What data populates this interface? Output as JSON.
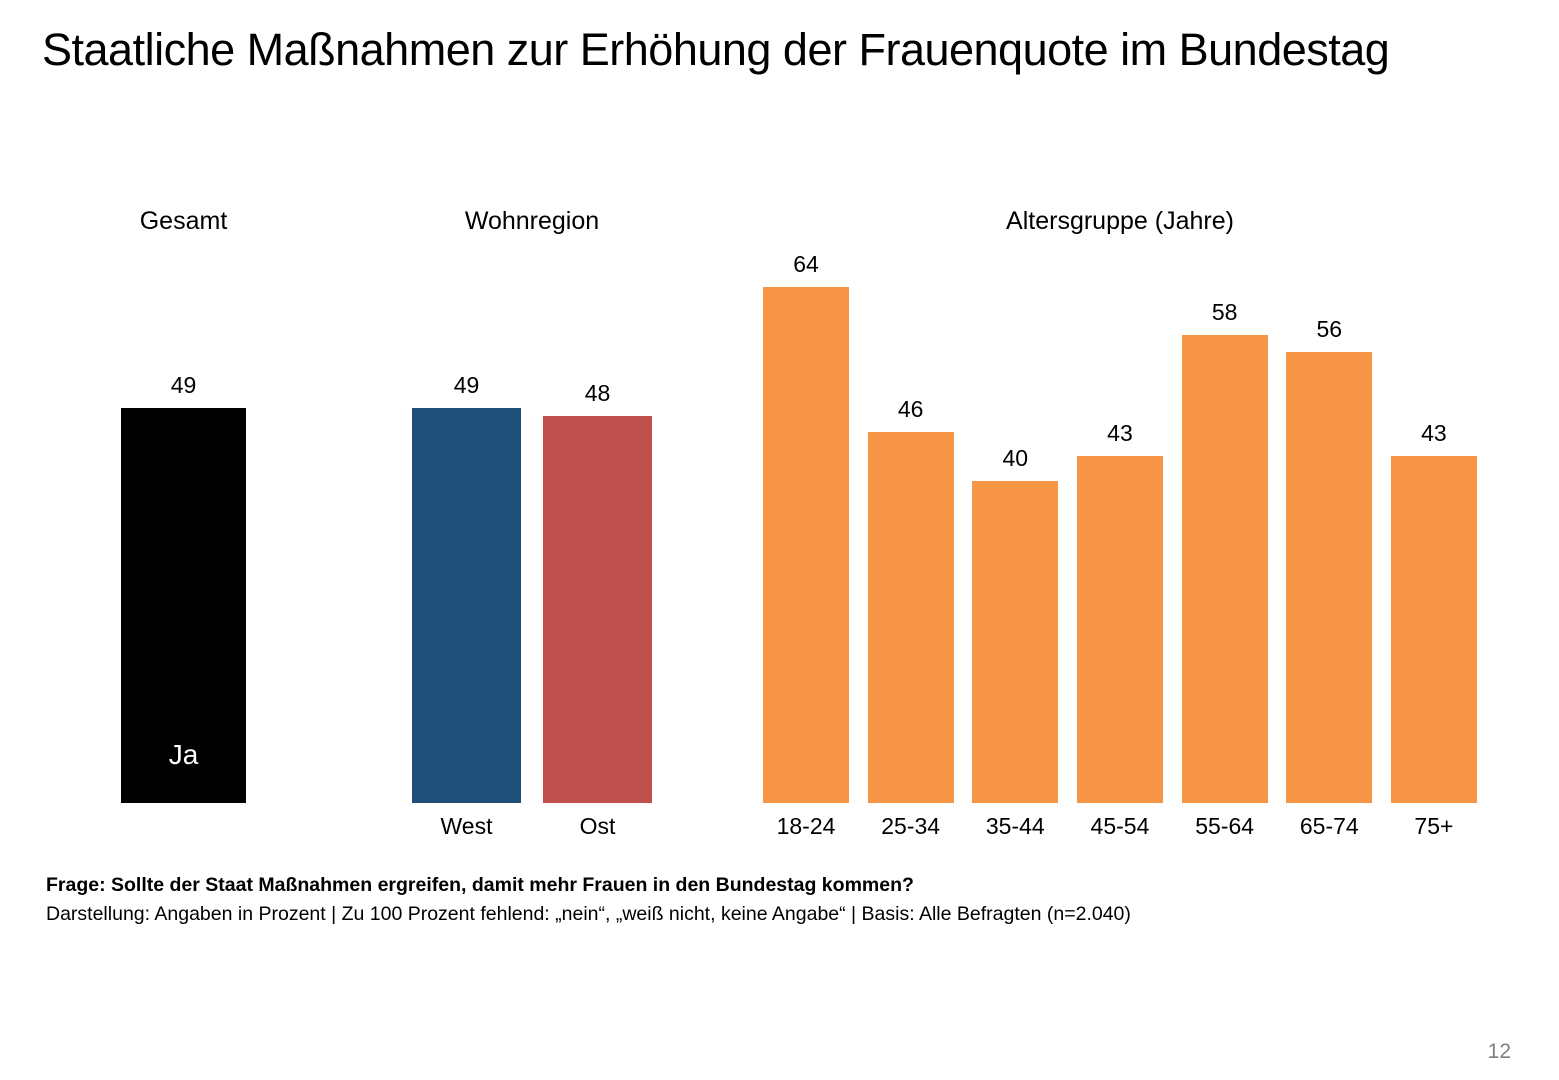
{
  "title": "Staatliche Maßnahmen zur Erhöhung der Frauenquote im Bundestag",
  "footer": {
    "question": "Frage: Sollte der Staat Maßnahmen ergreifen, damit mehr Frauen in den Bundestag kommen?",
    "note": "Darstellung: Angaben in Prozent | Zu 100 Prozent fehlend: „nein“, „weiß nicht, keine Angabe“ | Basis: Alle Befragten (n=2.040)"
  },
  "page_number": "12",
  "colors": {
    "gesamt": "#000000",
    "west": "#1F4E79",
    "ost": "#C0504D",
    "altersgruppe": "#F79646",
    "value_label": "#000000",
    "inner_label": "#FFFFFF",
    "page_number": "#7F7F7F"
  },
  "chart_data": {
    "type": "bar",
    "title": "Staatliche Maßnahmen zur Erhöhung der Frauenquote im Bundestag",
    "unit": "percent",
    "ylabel": "",
    "xlabel": "",
    "ylim": [
      0,
      100
    ],
    "grid": false,
    "legend": false,
    "answer_shown": "Ja",
    "groups": [
      {
        "label": "Gesamt",
        "color": "#000000",
        "bars": [
          {
            "category": "Ja",
            "value": 49,
            "label_position": "inside"
          }
        ]
      },
      {
        "label": "Wohnregion",
        "bars": [
          {
            "category": "West",
            "value": 49,
            "color": "#1F4E79"
          },
          {
            "category": "Ost",
            "value": 48,
            "color": "#C0504D"
          }
        ]
      },
      {
        "label": "Altersgruppe (Jahre)",
        "color": "#F79646",
        "bars": [
          {
            "category": "18-24",
            "value": 64
          },
          {
            "category": "25-34",
            "value": 46
          },
          {
            "category": "35-44",
            "value": 40
          },
          {
            "category": "45-54",
            "value": 43
          },
          {
            "category": "55-64",
            "value": 58
          },
          {
            "category": "65-74",
            "value": 56
          },
          {
            "category": "75+",
            "value": 43
          }
        ]
      }
    ]
  }
}
